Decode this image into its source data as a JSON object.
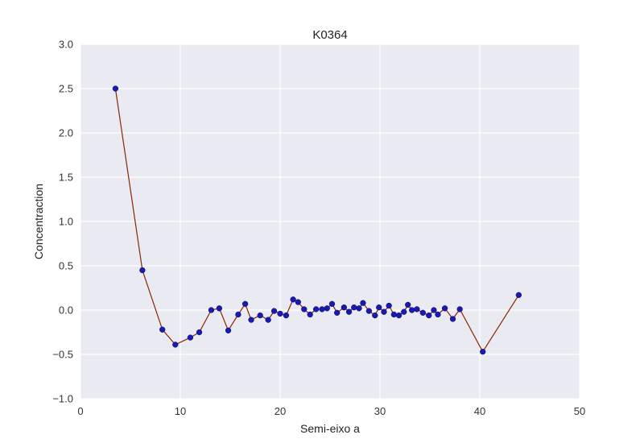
{
  "chart_data": {
    "type": "line",
    "title": "K0364",
    "xlabel": "Semi-eixo a",
    "ylabel": "Concentraction",
    "xlim": [
      0,
      50
    ],
    "ylim": [
      -1.0,
      3.0
    ],
    "xticks": [
      "0",
      "10",
      "20",
      "30",
      "40",
      "50"
    ],
    "yticks": [
      "−1.0",
      "−0.5",
      "0.0",
      "0.5",
      "1.0",
      "1.5",
      "2.0",
      "2.5",
      "3.0"
    ],
    "grid": true,
    "colors": {
      "line": "#8b2500",
      "marker": "#1a1ab0",
      "plot_bg": "#eaeaf2",
      "grid": "#ffffff"
    },
    "series": [
      {
        "x": [
          3.5,
          6.2,
          8.2,
          9.5,
          11.0,
          11.9,
          13.1,
          13.9,
          14.8,
          15.8,
          16.5,
          17.1,
          18.0,
          18.8,
          19.4,
          20.0,
          20.6,
          21.3,
          21.8,
          22.4,
          23.0,
          23.6,
          24.2,
          24.7,
          25.2,
          25.7,
          26.4,
          26.9,
          27.4,
          27.9,
          28.3,
          28.9,
          29.5,
          29.9,
          30.4,
          30.9,
          31.4,
          31.9,
          32.4,
          32.8,
          33.2,
          33.7,
          34.3,
          34.9,
          35.4,
          35.8,
          36.5,
          37.3,
          38.0,
          40.3,
          43.9
        ],
        "y": [
          2.5,
          0.45,
          -0.22,
          -0.39,
          -0.31,
          -0.25,
          0.0,
          0.02,
          -0.23,
          -0.05,
          0.07,
          -0.11,
          -0.06,
          -0.11,
          -0.01,
          -0.04,
          -0.06,
          0.12,
          0.09,
          0.01,
          -0.05,
          0.01,
          0.01,
          0.02,
          0.07,
          -0.03,
          0.03,
          -0.02,
          0.03,
          0.02,
          0.08,
          -0.01,
          -0.06,
          0.03,
          -0.02,
          0.05,
          -0.05,
          -0.06,
          -0.02,
          0.06,
          0.0,
          0.01,
          -0.03,
          -0.06,
          0.0,
          -0.05,
          0.02,
          -0.1,
          0.01,
          -0.47,
          0.17
        ]
      }
    ]
  }
}
